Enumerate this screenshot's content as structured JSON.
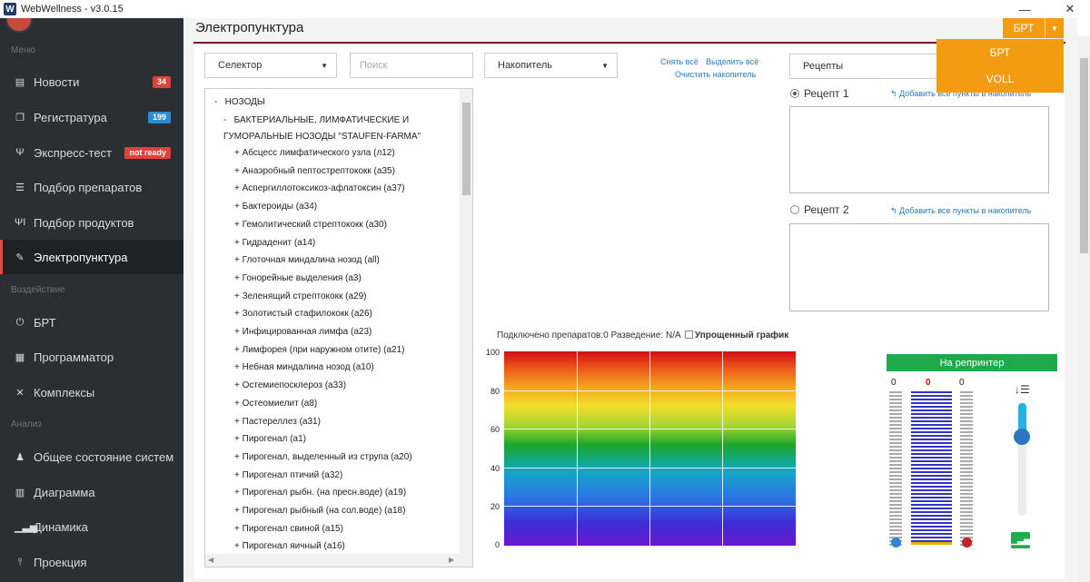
{
  "window": {
    "app_title": "WebWellness - v3.0.15",
    "logo_letter": "W"
  },
  "sidebar": {
    "section_menu": "Меню",
    "section_impact": "Воздействие",
    "section_analysis": "Анализ",
    "items": [
      {
        "label": "Новости",
        "badge": "34",
        "icon": "newspaper-icon"
      },
      {
        "label": "Регистратура",
        "badge": "199",
        "icon": "registry-icon"
      },
      {
        "label": "Экспресс-тест",
        "badge": "not ready",
        "icon": "test-icon"
      },
      {
        "label": "Подбор препаратов",
        "icon": "sliders-icon"
      },
      {
        "label": "Подбор продуктов",
        "icon": "cutlery-icon"
      },
      {
        "label": "Электропунктура",
        "icon": "pen-icon"
      },
      {
        "label": "БРТ",
        "icon": "power-icon"
      },
      {
        "label": "Программатор",
        "icon": "calculator-icon"
      },
      {
        "label": "Комплексы",
        "icon": "shuffle-icon"
      },
      {
        "label": "Общее состояние систем",
        "icon": "person-icon"
      },
      {
        "label": "Диаграмма",
        "icon": "bar-chart-icon"
      },
      {
        "label": "Динамика",
        "icon": "signal-icon"
      },
      {
        "label": "Проекция",
        "icon": "pin-icon"
      }
    ]
  },
  "page": {
    "title": "Электропунктура"
  },
  "controls": {
    "selector": "Селектор",
    "search_placeholder": "Поиск",
    "accumulator": "Накопитель",
    "remove_all": "Снять всё",
    "select_all": "Выделить всё",
    "clear_accumulator": "Очистить накопитель",
    "recipes": "Рецепты"
  },
  "tree": {
    "root": "НОЗОДЫ",
    "group_line1": "БАКТЕРИАЛЬНЫЕ, ЛИМФАТИЧЕСКИЕ И",
    "group_line2": "ГУМОРАЛЬНЫЕ НОЗОДЫ \"STAUFEN-FARMA\"",
    "items": [
      "Абсцесс лимфатического узла (л12)",
      "Анаэробный пептострептококк (а35)",
      "Аспергиллотоксикоз-афлатоксин (а37)",
      "Бактероиды (а34)",
      "Гемолитический стрептококк (а30)",
      "Гидраденит (а14)",
      "Глоточная миндалина нозод (all)",
      "Гонорейные выделения (а3)",
      "Зеленящий стрептококк (а29)",
      "Золотистый стафилококк (а26)",
      "Инфицированная лимфа (а23)",
      "Лимфорея (при наружном отите) (а21)",
      "Небная миндалина нозод (а10)",
      "Остемиепосклероз (а33)",
      "Остеомиелит (а8)",
      "Пастереллез (а31)",
      "Пирогенал (а1)",
      "Пирогенал, выделенный из струпа (а20)",
      "Пирогенал птичий (а32)",
      "Пирогенал рыбн. (на пресн.воде) (а19)",
      "Пирогенал рыбный (на сол.воде) (а18)",
      "Пирогенал свиной (а15)",
      "Пирогенал яичный (а16)"
    ]
  },
  "recipes": {
    "r1": "Рецепт 1",
    "r2": "Рецепт 2",
    "add_link": "Добавить все пункты в накопитель"
  },
  "status": {
    "text": "Подключено препаратов:0 Разведение: N/A",
    "simplified": "Упрощенный график"
  },
  "chart": {
    "yticks": [
      "100",
      "80",
      "60",
      "40",
      "20",
      "0"
    ]
  },
  "meter": {
    "button": "На репринтер",
    "left_value": "0",
    "center_value": "0",
    "right_value": "0",
    "slider_level": 0.7
  },
  "brt": {
    "button": "БРТ",
    "menu": [
      "БРТ",
      "VOLL"
    ]
  }
}
